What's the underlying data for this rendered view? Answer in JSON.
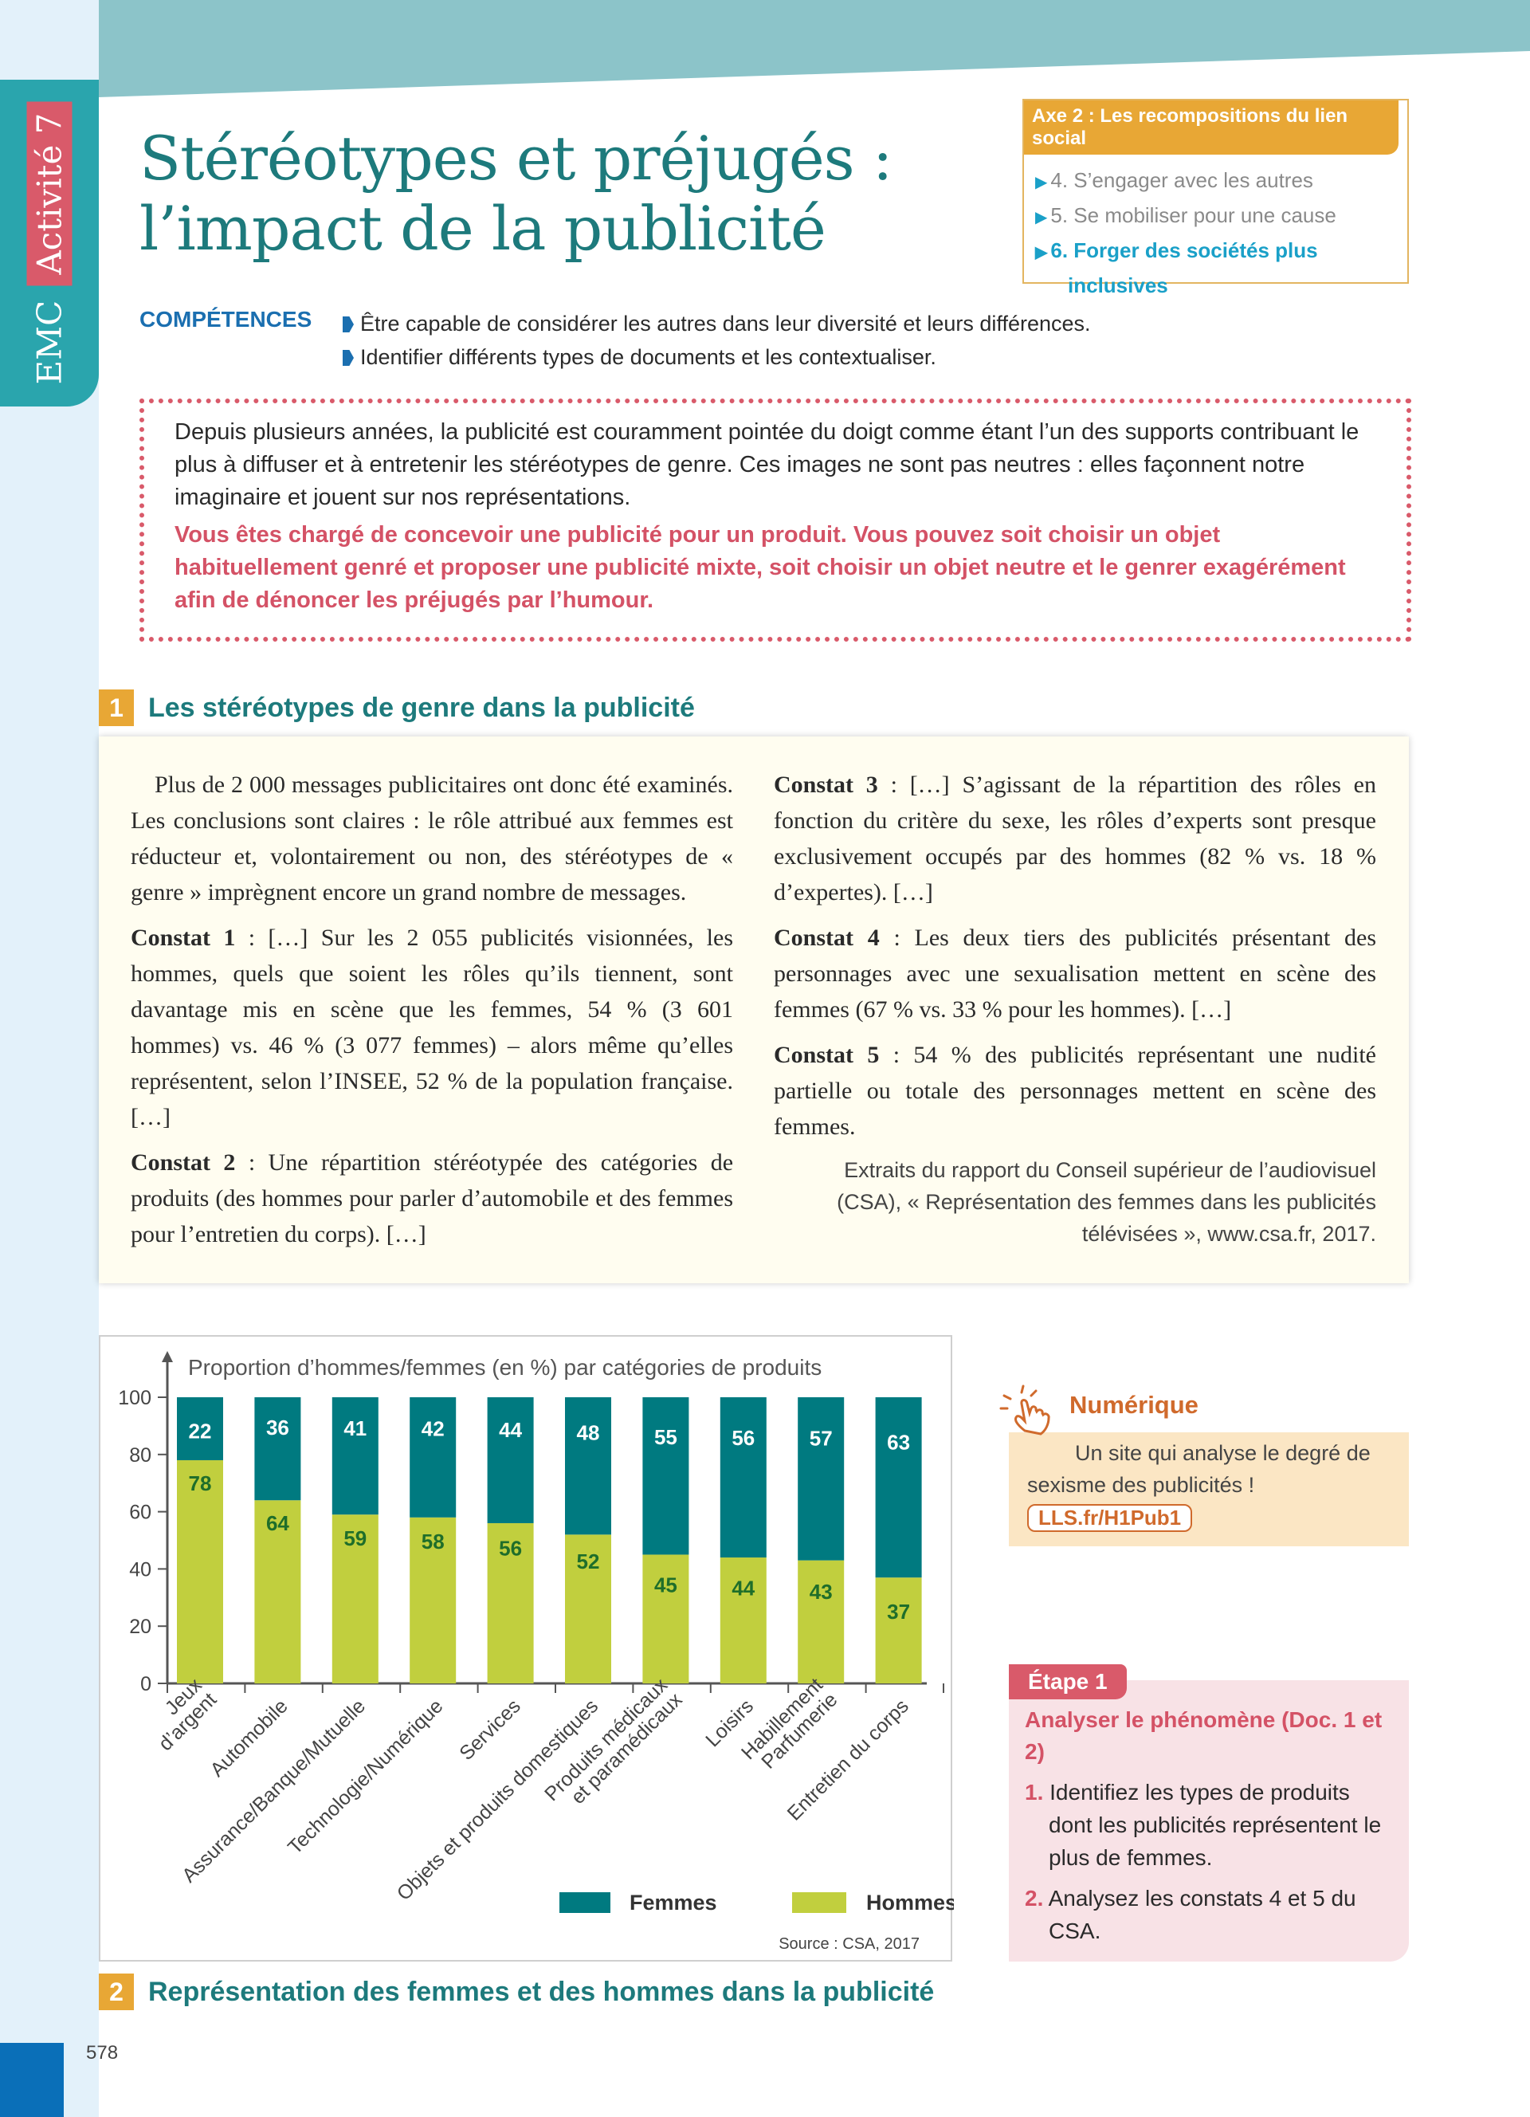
{
  "sidebar": {
    "subject": "EMC",
    "activity": "Activité 7"
  },
  "title": {
    "line1": "Stéréotypes et préjugés :",
    "line2": "l’impact de la publicité"
  },
  "axe": {
    "header": "Axe 2 : Les recompositions du lien social",
    "items": [
      {
        "label": "4. S’engager avec les autres"
      },
      {
        "label": "5. Se mobiliser pour une cause"
      },
      {
        "label": "6. Forger des sociétés plus",
        "label2": "inclusives"
      }
    ]
  },
  "competences": {
    "label": "COMPÉTENCES",
    "items": [
      "Être capable de considérer les autres dans leur diversité et leurs différences.",
      "Identifier différents types de documents et les contextualiser."
    ]
  },
  "intro": {
    "text": "Depuis plusieurs années, la publicité est couramment pointée du doigt comme étant l’un des supports contribuant le plus à diffuser et à entretenir les stéréotypes de genre. Ces images ne sont pas neutres : elles façonnent notre imaginaire et jouent sur nos représentations.",
    "task": "Vous êtes chargé de concevoir une publicité pour un produit. Vous pouvez soit choisir un objet habituellement genré et proposer une publicité mixte, soit choisir un objet neutre et le genrer exagérément afin de dénoncer les préjugés par l’humour."
  },
  "doc1": {
    "number": "1",
    "title": "Les stéréotypes de genre dans la publicité",
    "p0": "Plus de 2 000 messages publicitaires ont donc été examinés. Les conclusions sont claires : le rôle attribué aux femmes est réducteur et, volontairement ou non, des stéréotypes de « genre » imprègnent encore un grand nombre de messages.",
    "c1k": "Constat 1",
    "c1": " : […] Sur les 2 055 publicités visionnées, les hommes, quels que soient les rôles qu’ils tiennent, sont davantage mis en scène que les femmes, 54 % (3 601 hommes) vs. 46 % (3 077 femmes) – alors même qu’elles représentent, selon l’INSEE, 52 % de la population française. […]",
    "c2k": "Constat 2",
    "c2": " : Une répartition stéréotypée des catégories de produits (des hommes pour parler d’automobile et des femmes pour l’entretien du corps). […]",
    "c3k": "Constat 3",
    "c3": " : […] S’agissant de la répartition des rôles en fonction du critère du sexe, les rôles d’experts sont presque exclusivement occupés par des hommes (82 % vs. 18 % d’expertes). […]",
    "c4k": "Constat 4",
    "c4": " : Les deux tiers des publicités présentant des personnages avec une sexualisation mettent en scène des femmes (67 % vs. 33 % pour les hommes). […]",
    "c5k": "Constat 5",
    "c5": " : 54 % des publicités représentant une nudité partielle ou totale des personnages mettent en scène des femmes.",
    "source": "Extraits du rapport du Conseil supérieur de l’audiovisuel (CSA), « Représentation des femmes dans les publicités télévisées », www.csa.fr, 2017."
  },
  "doc2": {
    "number": "2",
    "title": "Représentation des femmes et des hommes dans la publicité"
  },
  "chart_data": {
    "type": "bar",
    "stacked": true,
    "title": "Proportion d’hommes/femmes (en %) par catégories de produits",
    "categories": [
      [
        "Jeux",
        "d’argent"
      ],
      [
        "Automobile"
      ],
      [
        "Assurance/Banque/Mutuelle"
      ],
      [
        "Technologie/Numérique"
      ],
      [
        "Services"
      ],
      [
        "Objets et produits domestiques"
      ],
      [
        "Produits médicaux",
        "et paramédicaux"
      ],
      [
        "Loisirs"
      ],
      [
        "Habillement",
        "Parfumerie"
      ],
      [
        "Entretien du corps"
      ]
    ],
    "series": [
      {
        "name": "Hommes",
        "color": "#c1cf3e",
        "label_color": "#1f6e2a",
        "values": [
          78,
          64,
          59,
          58,
          56,
          52,
          45,
          44,
          43,
          37
        ]
      },
      {
        "name": "Femmes",
        "color": "#007a80",
        "label_color": "#ffffff",
        "values": [
          22,
          36,
          41,
          42,
          44,
          48,
          55,
          56,
          57,
          63
        ]
      }
    ],
    "yticks": [
      0,
      20,
      40,
      60,
      80,
      100
    ],
    "ylim": [
      0,
      100
    ],
    "legend": "bottom-right",
    "source": "Source : CSA, 2017"
  },
  "numerique": {
    "title": "Numérique",
    "text": "Un site qui analyse le degré de sexisme des publicités !",
    "link": "LLS.fr/H1Pub1"
  },
  "etape": {
    "tag": "Étape 1",
    "heading": "Analyser le phénomène (Doc. 1 et 2)",
    "items": [
      {
        "k": "1.",
        "t": "Identifiez les types de produits dont les publicités représentent le plus de femmes."
      },
      {
        "k": "2.",
        "t": "Analysez les constats 4 et 5 du CSA."
      }
    ]
  },
  "page_number": "578"
}
